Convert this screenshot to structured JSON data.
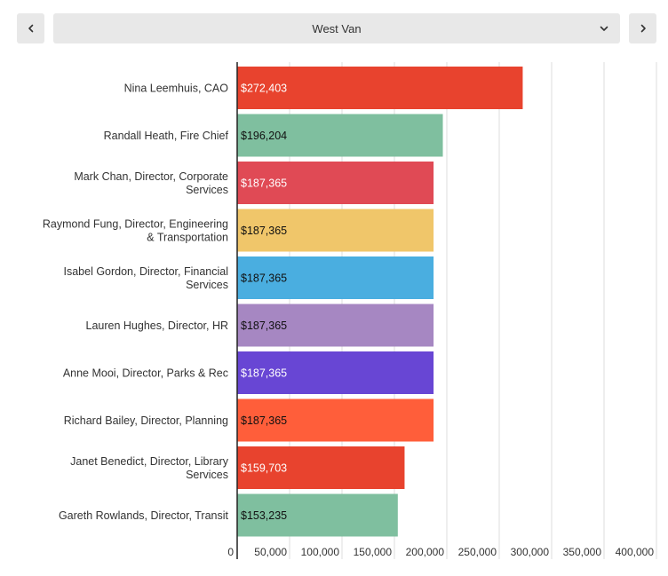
{
  "controls": {
    "selected_municipality": "West Van",
    "prev_icon": "chevron-left-icon",
    "next_icon": "chevron-right-icon",
    "dropdown_icon": "chevron-down-icon"
  },
  "chart_data": {
    "type": "bar",
    "orientation": "horizontal",
    "categories": [
      "Nina Leemhuis, CAO",
      "Randall Heath, Fire Chief",
      "Mark Chan, Director, Corporate Services",
      "Raymond Fung, Director, Engineering & Transportation",
      "Isabel Gordon, Director, Financial Services",
      "Lauren Hughes, Director, HR",
      "Anne Mooi, Director, Parks & Rec",
      "Richard Bailey, Director, Planning",
      "Janet Benedict, Director, Library Services",
      "Gareth Rowlands, Director, Transit"
    ],
    "values": [
      272403,
      196204,
      187365,
      187365,
      187365,
      187365,
      187365,
      187365,
      159703,
      153235
    ],
    "value_labels": [
      "$272,403",
      "$196,204",
      "$187,365",
      "$187,365",
      "$187,365",
      "$187,365",
      "$187,365",
      "$187,365",
      "$159,703",
      "$153,235"
    ],
    "colors": [
      "#e8432e",
      "#7fbf9f",
      "#e04a55",
      "#f0c66a",
      "#4aaee0",
      "#a687c2",
      "#6846d4",
      "#ff5e3a",
      "#e8432e",
      "#7fbf9f"
    ],
    "label_colors": [
      "#ffffff",
      "#111111",
      "#ffffff",
      "#111111",
      "#111111",
      "#111111",
      "#ffffff",
      "#111111",
      "#ffffff",
      "#111111"
    ],
    "xlim": [
      0,
      400000
    ],
    "xticks": [
      0,
      50000,
      100000,
      150000,
      200000,
      250000,
      300000,
      350000,
      400000
    ],
    "xtick_labels": [
      "0",
      "50,000",
      "100,000",
      "150,000",
      "200,000",
      "250,000",
      "300,000",
      "350,000",
      "400,000"
    ],
    "grid": true
  }
}
